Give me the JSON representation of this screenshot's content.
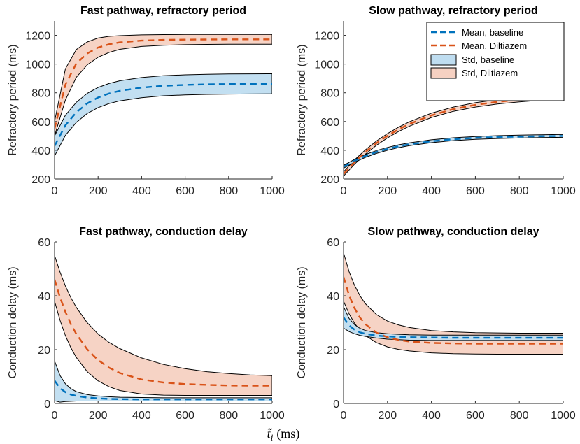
{
  "figure": {
    "common_xlabel_var": "t̃",
    "common_xlabel_sub": "i",
    "common_xlabel_unit": "(ms)"
  },
  "colors": {
    "baseline_line": "#0072BD",
    "diltiazem_line": "#D95319",
    "baseline_fill": "#BFDDF0",
    "diltiazem_fill": "#F6D1C2",
    "outline": "#000000"
  },
  "legend": {
    "mean_baseline": "Mean, baseline",
    "mean_diltiazem": "Mean, Diltiazem",
    "std_baseline": "Std, baseline",
    "std_diltiazem": "Std, Diltiazem"
  },
  "chart_data": [
    {
      "type": "area",
      "title": "Fast pathway, refractory period",
      "xlabel": "",
      "ylabel": "Refractory period (ms)",
      "xlim": [
        0,
        1000
      ],
      "ylim": [
        200,
        1300
      ],
      "xticks": [
        0,
        200,
        400,
        600,
        800,
        1000
      ],
      "yticks": [
        200,
        400,
        600,
        800,
        1000,
        1200
      ],
      "x": [
        0,
        50,
        100,
        150,
        200,
        250,
        300,
        400,
        500,
        600,
        700,
        800,
        900,
        1000
      ],
      "series": [
        {
          "name": "Mean, baseline",
          "mean": [
            430,
            574,
            664,
            726,
            767,
            795,
            814,
            836,
            849,
            855,
            859,
            861,
            862,
            863
          ],
          "upper": [
            500,
            644,
            734,
            796,
            837,
            865,
            884,
            906,
            919,
            925,
            929,
            931,
            932,
            933
          ],
          "lower": [
            360,
            504,
            594,
            656,
            697,
            725,
            744,
            766,
            779,
            785,
            789,
            791,
            792,
            793
          ]
        },
        {
          "name": "Mean, Diltiazem",
          "mean": [
            550,
            857,
            1004,
            1074,
            1115,
            1138,
            1151,
            1163,
            1168,
            1170,
            1171,
            1172,
            1172,
            1172
          ],
          "upper": [
            600,
            967,
            1101,
            1154,
            1181,
            1193,
            1198,
            1203,
            1205,
            1206,
            1206,
            1206,
            1206,
            1206
          ],
          "lower": [
            500,
            750,
            908,
            995,
            1048,
            1081,
            1103,
            1123,
            1131,
            1135,
            1137,
            1138,
            1138,
            1138
          ]
        }
      ]
    },
    {
      "type": "area",
      "title": "Slow pathway, refractory period",
      "xlabel": "",
      "ylabel": "Refractory period (ms)",
      "xlim": [
        0,
        1000
      ],
      "ylim": [
        200,
        1300
      ],
      "xticks": [
        0,
        200,
        400,
        600,
        800,
        1000
      ],
      "yticks": [
        200,
        400,
        600,
        800,
        1000,
        1200
      ],
      "legend_position": "top-right",
      "x": [
        0,
        50,
        100,
        150,
        200,
        250,
        300,
        400,
        500,
        600,
        700,
        800,
        900,
        1000
      ],
      "series": [
        {
          "name": "Mean, baseline",
          "mean": [
            285,
            327,
            361,
            388,
            410,
            428,
            442,
            463,
            477,
            486,
            492,
            495,
            498,
            500
          ],
          "upper": [
            295,
            337,
            371,
            398,
            420,
            438,
            452,
            473,
            487,
            496,
            502,
            505,
            508,
            510
          ],
          "lower": [
            275,
            317,
            351,
            378,
            400,
            418,
            432,
            453,
            467,
            476,
            482,
            485,
            488,
            490
          ]
        },
        {
          "name": "Mean, Diltiazem",
          "mean": [
            235,
            318,
            389,
            450,
            501,
            545,
            583,
            643,
            686,
            716,
            737,
            752,
            763,
            770
          ],
          "upper": [
            250,
            333,
            404,
            465,
            516,
            560,
            598,
            658,
            701,
            731,
            752,
            767,
            778,
            785
          ],
          "lower": [
            220,
            303,
            374,
            435,
            486,
            530,
            568,
            628,
            671,
            701,
            722,
            737,
            748,
            755
          ]
        }
      ]
    },
    {
      "type": "area",
      "title": "Fast pathway, conduction delay",
      "xlabel": "",
      "ylabel": "Conduction delay (ms)",
      "xlim": [
        0,
        1000
      ],
      "ylim": [
        0,
        60
      ],
      "xticks": [
        0,
        200,
        400,
        600,
        800,
        1000
      ],
      "yticks": [
        0,
        20,
        40,
        60
      ],
      "x": [
        0,
        25,
        50,
        75,
        100,
        150,
        200,
        250,
        300,
        400,
        500,
        600,
        700,
        800,
        900,
        1000
      ],
      "series": [
        {
          "name": "Mean, baseline",
          "mean": [
            8.5,
            5.7,
            4.2,
            3.3,
            2.8,
            2.2,
            1.9,
            1.7,
            1.6,
            1.5,
            1.5,
            1.5,
            1.5,
            1.5,
            1.5,
            1.5
          ],
          "upper": [
            15.8,
            10.4,
            7.3,
            5.5,
            4.4,
            3.3,
            2.8,
            2.5,
            2.3,
            2.2,
            2.1,
            2.1,
            2.1,
            2.1,
            2.1,
            2.1
          ],
          "lower": [
            1.0,
            0.5,
            0.7,
            0.8,
            0.9,
            0.9,
            0.9,
            0.9,
            0.9,
            0.9,
            0.9,
            0.9,
            0.9,
            0.9,
            0.9,
            0.9
          ]
        },
        {
          "name": "Mean, Diltiazem",
          "mean": [
            46,
            39.4,
            34.0,
            29.5,
            25.8,
            20.1,
            16.1,
            13.3,
            11.3,
            8.9,
            7.8,
            7.2,
            6.9,
            6.7,
            6.6,
            6.6
          ],
          "upper": [
            55,
            48.8,
            43.6,
            39.3,
            35.7,
            30.0,
            25.8,
            22.7,
            20.4,
            16.9,
            14.5,
            12.9,
            11.8,
            11.1,
            10.6,
            10.3
          ],
          "lower": [
            38,
            30.9,
            25.2,
            20.7,
            17.1,
            11.8,
            8.4,
            6.2,
            4.8,
            3.5,
            3.1,
            3.0,
            3.0,
            3.0,
            3.0,
            3.0
          ]
        }
      ]
    },
    {
      "type": "area",
      "title": "Slow pathway, conduction delay",
      "xlabel": "",
      "ylabel": "Conduction delay (ms)",
      "xlim": [
        0,
        1000
      ],
      "ylim": [
        0,
        60
      ],
      "xticks": [
        0,
        200,
        400,
        600,
        800,
        1000
      ],
      "yticks": [
        0,
        20,
        40,
        60
      ],
      "x": [
        0,
        25,
        50,
        75,
        100,
        150,
        200,
        250,
        300,
        400,
        500,
        600,
        700,
        800,
        900,
        1000
      ],
      "series": [
        {
          "name": "Mean, baseline",
          "mean": [
            32,
            29.0,
            27.4,
            26.4,
            25.9,
            25.2,
            24.9,
            24.7,
            24.6,
            24.5,
            24.4,
            24.4,
            24.4,
            24.4,
            24.4,
            24.4
          ],
          "upper": [
            36,
            31.6,
            29.3,
            27.9,
            27.1,
            26.3,
            25.9,
            25.7,
            25.5,
            25.4,
            25.4,
            25.4,
            25.4,
            25.4,
            25.4,
            25.4
          ],
          "lower": [
            28,
            26.7,
            25.9,
            25.3,
            24.9,
            24.3,
            23.9,
            23.7,
            23.5,
            23.4,
            23.4,
            23.4,
            23.4,
            23.4,
            23.4,
            23.4
          ]
        },
        {
          "name": "Mean, Diltiazem",
          "mean": [
            47,
            40.2,
            35.4,
            31.9,
            29.4,
            26.3,
            24.6,
            23.6,
            23.0,
            22.5,
            22.3,
            22.2,
            22.2,
            22.2,
            22.2,
            22.2
          ],
          "upper": [
            56,
            49.0,
            43.9,
            40.0,
            37.0,
            33.0,
            30.6,
            29.2,
            28.2,
            27.1,
            26.6,
            26.3,
            26.2,
            26.1,
            26.1,
            26.1
          ],
          "lower": [
            38,
            33.3,
            29.8,
            27.2,
            25.2,
            22.6,
            21.0,
            20.1,
            19.5,
            18.8,
            18.5,
            18.4,
            18.3,
            18.3,
            18.3,
            18.3
          ]
        }
      ]
    }
  ]
}
